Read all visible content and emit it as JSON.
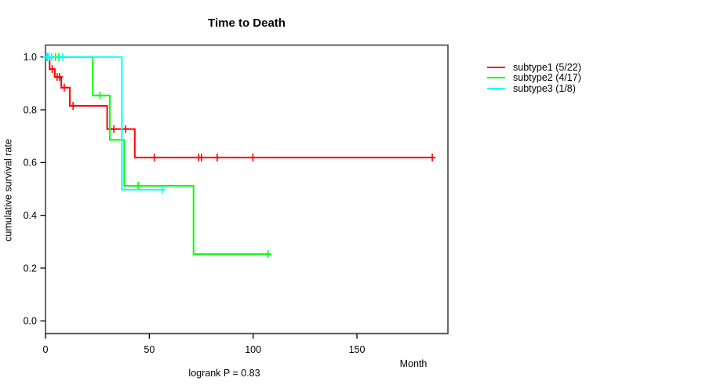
{
  "page": {
    "background": "#ffffff",
    "text_color": "#000000",
    "box_color": "#4d4d4d"
  },
  "chart_data": {
    "type": "line",
    "subtype": "kaplan-meier-step-curves",
    "title": "Time to Death",
    "xlabel": "Month",
    "ylabel": "cumulative survival rate",
    "annotation": "logrank P = 0.83",
    "grid": false,
    "legend_position": "right-outside",
    "xlim": [
      0,
      195
    ],
    "ylim": [
      0,
      1
    ],
    "x_ticks": {
      "values": [
        0,
        50,
        100,
        150
      ],
      "labels": [
        "0",
        "50",
        "100",
        "150"
      ]
    },
    "y_ticks": {
      "values": [
        0,
        0.2,
        0.4,
        0.6,
        0.8,
        1.0
      ],
      "labels": [
        "0.0",
        "0.2",
        "0.4",
        "0.6",
        "0.8",
        "1.0"
      ]
    },
    "series": [
      {
        "name": "subtype1 (5/22)",
        "color": "#ff0000",
        "events": 5,
        "n": 22,
        "points": [
          [
            0,
            1.0
          ],
          [
            2.0,
            1.0
          ],
          [
            2.0,
            0.954
          ],
          [
            4.5,
            0.954
          ],
          [
            4.5,
            0.924
          ],
          [
            7.6,
            0.924
          ],
          [
            7.6,
            0.884
          ],
          [
            11.7,
            0.884
          ],
          [
            11.7,
            0.815
          ],
          [
            29.7,
            0.815
          ],
          [
            29.7,
            0.727
          ],
          [
            43.0,
            0.727
          ],
          [
            43.0,
            0.619
          ],
          [
            186.3,
            0.619
          ]
        ],
        "censor_marks": [
          [
            0.9,
            1.0
          ],
          [
            3.2,
            0.954
          ],
          [
            5.6,
            0.924
          ],
          [
            6.8,
            0.924
          ],
          [
            9.0,
            0.884
          ],
          [
            13.3,
            0.815
          ],
          [
            32.9,
            0.727
          ],
          [
            38.6,
            0.727
          ],
          [
            52.4,
            0.619
          ],
          [
            73.8,
            0.619
          ],
          [
            75.1,
            0.619
          ],
          [
            82.7,
            0.619
          ],
          [
            99.9,
            0.619
          ],
          [
            186.3,
            0.619
          ]
        ]
      },
      {
        "name": "subtype2 (4/17)",
        "color": "#00ff00",
        "events": 4,
        "n": 17,
        "points": [
          [
            0,
            1.0
          ],
          [
            22.8,
            1.0
          ],
          [
            22.8,
            0.854
          ],
          [
            31.0,
            0.854
          ],
          [
            31.0,
            0.686
          ],
          [
            37.9,
            0.686
          ],
          [
            37.9,
            0.512
          ],
          [
            71.3,
            0.512
          ],
          [
            71.3,
            0.253
          ],
          [
            107.2,
            0.253
          ]
        ],
        "censor_marks": [
          [
            4.8,
            1.0
          ],
          [
            6.4,
            1.0
          ],
          [
            26.2,
            0.854
          ],
          [
            44.6,
            0.512
          ],
          [
            107.2,
            0.253
          ]
        ]
      },
      {
        "name": "subtype3 (1/8)",
        "color": "#00ffff",
        "events": 1,
        "n": 8,
        "points": [
          [
            0,
            1.0
          ],
          [
            36.8,
            1.0
          ],
          [
            36.8,
            0.497
          ],
          [
            56.4,
            0.497
          ]
        ],
        "censor_marks": [
          [
            0.4,
            1.0
          ],
          [
            1.1,
            1.0
          ],
          [
            1.9,
            1.0
          ],
          [
            3.0,
            1.0
          ],
          [
            8.3,
            1.0
          ],
          [
            56.2,
            0.497
          ]
        ]
      }
    ]
  }
}
